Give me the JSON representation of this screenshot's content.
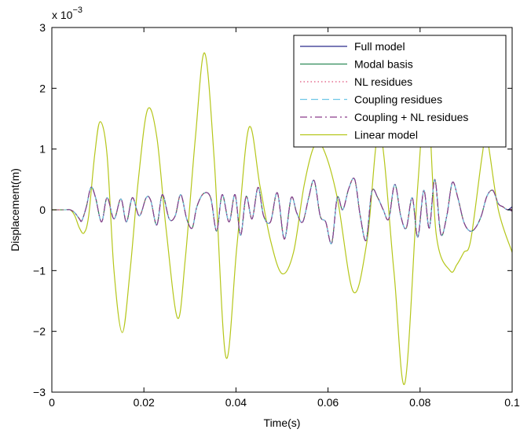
{
  "chart_data": {
    "type": "line",
    "xlabel": "Time(s)",
    "ylabel": "Displacement(m)",
    "y_multiplier_label": "x 10",
    "y_multiplier_exponent": "−3",
    "xlim": [
      0,
      0.1
    ],
    "ylim": [
      -3,
      3
    ],
    "x_ticks": [
      0,
      0.02,
      0.04,
      0.06,
      0.08,
      0.1
    ],
    "x_tick_labels": [
      "0",
      "0.02",
      "0.04",
      "0.06",
      "0.08",
      "0.1"
    ],
    "y_ticks": [
      -3,
      -2,
      -1,
      0,
      1,
      2,
      3
    ],
    "y_tick_labels": [
      "−3",
      "−2",
      "−1",
      "0",
      "1",
      "2",
      "3"
    ],
    "grid": false,
    "legend_position": "top-right",
    "series": [
      {
        "name": "Full model",
        "color": "#2b2b8c",
        "dash": "solid",
        "x": [
          0,
          0.003,
          0.004,
          0.005,
          0.006,
          0.0065,
          0.0075,
          0.0085,
          0.0095,
          0.0108,
          0.012,
          0.0135,
          0.015,
          0.0162,
          0.0175,
          0.019,
          0.0205,
          0.0215,
          0.0228,
          0.024,
          0.0255,
          0.0268,
          0.028,
          0.0293,
          0.0305,
          0.0315,
          0.033,
          0.0345,
          0.0358,
          0.037,
          0.0385,
          0.0398,
          0.041,
          0.0422,
          0.0435,
          0.0448,
          0.046,
          0.0475,
          0.049,
          0.0505,
          0.052,
          0.0532,
          0.0545,
          0.0558,
          0.057,
          0.0583,
          0.0595,
          0.0608,
          0.062,
          0.0632,
          0.0645,
          0.0658,
          0.067,
          0.0683,
          0.0695,
          0.0708,
          0.072,
          0.0732,
          0.0745,
          0.0758,
          0.077,
          0.0783,
          0.0795,
          0.0808,
          0.082,
          0.0832,
          0.0845,
          0.0858,
          0.087,
          0.0882,
          0.0895,
          0.0908,
          0.092,
          0.0933,
          0.0945,
          0.0958,
          0.097,
          0.098,
          0.099,
          0.1
        ],
        "y": [
          0,
          0,
          0,
          -0.05,
          -0.15,
          -0.18,
          0.05,
          0.37,
          0.2,
          -0.2,
          0.2,
          -0.15,
          0.18,
          -0.2,
          0.2,
          -0.1,
          0.2,
          0.15,
          -0.25,
          0.25,
          -0.15,
          -0.1,
          0.25,
          -0.15,
          -0.3,
          0.05,
          0.27,
          0.2,
          -0.35,
          0.25,
          -0.2,
          0.25,
          -0.42,
          0.22,
          -0.15,
          0.37,
          -0.1,
          -0.2,
          0.28,
          -0.48,
          0.2,
          -0.05,
          -0.2,
          0.2,
          0.48,
          -0.1,
          -0.2,
          -0.55,
          0.2,
          0.0,
          0.35,
          0.5,
          -0.1,
          -0.5,
          0.3,
          0.2,
          0.0,
          -0.15,
          0.42,
          -0.1,
          -0.3,
          0.2,
          -0.45,
          0.32,
          -0.3,
          0.5,
          -0.4,
          -0.1,
          0.45,
          0.2,
          -0.2,
          -0.35,
          -0.3,
          -0.1,
          0.22,
          0.32,
          0.1,
          0.05,
          0.0,
          0.05
        ]
      },
      {
        "name": "Modal basis",
        "color": "#2e8b57",
        "dash": "solid",
        "x": [
          0,
          0.003,
          0.004,
          0.005,
          0.006,
          0.0065,
          0.0075,
          0.0085,
          0.0095,
          0.0108,
          0.012,
          0.0135,
          0.015,
          0.0162,
          0.0175,
          0.019,
          0.0205,
          0.0215,
          0.0228,
          0.024,
          0.0255,
          0.0268,
          0.028,
          0.0293,
          0.0305,
          0.0315,
          0.033,
          0.0345,
          0.0358,
          0.037,
          0.0385,
          0.0398,
          0.041,
          0.0422,
          0.0435,
          0.0448,
          0.046,
          0.0475,
          0.049,
          0.0505,
          0.052,
          0.0532,
          0.0545,
          0.0558,
          0.057,
          0.0583,
          0.0595,
          0.0608,
          0.062,
          0.0632,
          0.0645,
          0.0658,
          0.067,
          0.0683,
          0.0695,
          0.0708,
          0.072,
          0.0732,
          0.0745,
          0.0758,
          0.077,
          0.0783,
          0.0795,
          0.0808,
          0.082,
          0.0832,
          0.0845,
          0.0858,
          0.087,
          0.0882,
          0.0895,
          0.0908,
          0.092,
          0.0933,
          0.0945,
          0.0958,
          0.097,
          0.098,
          0.099,
          0.1
        ],
        "y": [
          0,
          0,
          0,
          -0.05,
          -0.15,
          -0.18,
          0.05,
          0.37,
          0.2,
          -0.2,
          0.2,
          -0.15,
          0.18,
          -0.2,
          0.2,
          -0.1,
          0.2,
          0.15,
          -0.25,
          0.25,
          -0.15,
          -0.1,
          0.25,
          -0.15,
          -0.3,
          0.05,
          0.27,
          0.2,
          -0.35,
          0.25,
          -0.2,
          0.25,
          -0.42,
          0.22,
          -0.15,
          0.37,
          -0.1,
          -0.2,
          0.28,
          -0.48,
          0.2,
          -0.05,
          -0.2,
          0.2,
          0.48,
          -0.1,
          -0.2,
          -0.55,
          0.2,
          0.0,
          0.35,
          0.5,
          -0.1,
          -0.5,
          0.3,
          0.2,
          0.0,
          -0.15,
          0.42,
          -0.1,
          -0.3,
          0.2,
          -0.45,
          0.32,
          -0.3,
          0.5,
          -0.4,
          -0.1,
          0.45,
          0.2,
          -0.2,
          -0.35,
          -0.3,
          -0.1,
          0.22,
          0.32,
          0.1,
          0.05,
          0.0,
          0.0
        ]
      },
      {
        "name": "NL residues",
        "color": "#e0507a",
        "dash": "dotted",
        "x": [
          0,
          0.003,
          0.004,
          0.005,
          0.006,
          0.0065,
          0.0075,
          0.0085,
          0.0095,
          0.0108,
          0.012,
          0.0135,
          0.015,
          0.0162,
          0.0175,
          0.019,
          0.0205,
          0.0215,
          0.0228,
          0.024,
          0.0255,
          0.0268,
          0.028,
          0.0293,
          0.0305,
          0.0315,
          0.033,
          0.0345,
          0.0358,
          0.037,
          0.0385,
          0.0398,
          0.041,
          0.0422,
          0.0435,
          0.0448,
          0.046,
          0.0475,
          0.049,
          0.0505,
          0.052,
          0.0532,
          0.0545,
          0.0558,
          0.057,
          0.0583,
          0.0595,
          0.0608,
          0.062,
          0.0632,
          0.0645,
          0.0658,
          0.067,
          0.0683,
          0.0695,
          0.0708,
          0.072,
          0.0732,
          0.0745,
          0.0758,
          0.077,
          0.0783,
          0.0795,
          0.0808,
          0.082,
          0.0832,
          0.0845,
          0.0858,
          0.087,
          0.0882,
          0.0895,
          0.0908,
          0.092,
          0.0933,
          0.0945,
          0.0958,
          0.097,
          0.098,
          0.099,
          0.1
        ],
        "y": [
          0,
          0,
          0,
          -0.05,
          -0.15,
          -0.18,
          0.05,
          0.37,
          0.2,
          -0.2,
          0.2,
          -0.15,
          0.18,
          -0.2,
          0.2,
          -0.1,
          0.2,
          0.15,
          -0.25,
          0.25,
          -0.15,
          -0.1,
          0.25,
          -0.15,
          -0.3,
          0.05,
          0.27,
          0.2,
          -0.35,
          0.25,
          -0.2,
          0.25,
          -0.42,
          0.22,
          -0.15,
          0.37,
          -0.1,
          -0.2,
          0.28,
          -0.48,
          0.2,
          -0.05,
          -0.2,
          0.2,
          0.48,
          -0.1,
          -0.2,
          -0.55,
          0.2,
          0.0,
          0.35,
          0.5,
          -0.1,
          -0.5,
          0.3,
          0.2,
          0.0,
          -0.15,
          0.42,
          -0.1,
          -0.3,
          0.2,
          -0.45,
          0.32,
          -0.3,
          0.5,
          -0.4,
          -0.1,
          0.45,
          0.2,
          -0.2,
          -0.35,
          -0.3,
          -0.1,
          0.22,
          0.32,
          0.1,
          0.05,
          0.0,
          0.02
        ]
      },
      {
        "name": "Coupling residues",
        "color": "#6ec6e6",
        "dash": "dashed",
        "x": [
          0,
          0.003,
          0.004,
          0.005,
          0.006,
          0.0065,
          0.0075,
          0.0085,
          0.0095,
          0.0108,
          0.012,
          0.0135,
          0.015,
          0.0162,
          0.0175,
          0.019,
          0.0205,
          0.0215,
          0.0228,
          0.024,
          0.0255,
          0.0268,
          0.028,
          0.0293,
          0.0305,
          0.0315,
          0.033,
          0.0345,
          0.0358,
          0.037,
          0.0385,
          0.0398,
          0.041,
          0.0422,
          0.0435,
          0.0448,
          0.046,
          0.0475,
          0.049,
          0.0505,
          0.052,
          0.0532,
          0.0545,
          0.0558,
          0.057,
          0.0583,
          0.0595,
          0.0608,
          0.062,
          0.0632,
          0.0645,
          0.0658,
          0.067,
          0.0683,
          0.0695,
          0.0708,
          0.072,
          0.0732,
          0.0745,
          0.0758,
          0.077,
          0.0783,
          0.0795,
          0.0808,
          0.082,
          0.0832,
          0.0845,
          0.0858,
          0.087,
          0.0882,
          0.0895,
          0.0908,
          0.092,
          0.0933,
          0.0945,
          0.0958,
          0.097,
          0.098,
          0.099,
          0.1
        ],
        "y": [
          0,
          0,
          0,
          -0.05,
          -0.15,
          -0.18,
          0.05,
          0.37,
          0.2,
          -0.2,
          0.2,
          -0.15,
          0.18,
          -0.2,
          0.2,
          -0.1,
          0.2,
          0.15,
          -0.25,
          0.25,
          -0.15,
          -0.1,
          0.25,
          -0.15,
          -0.3,
          0.05,
          0.27,
          0.2,
          -0.35,
          0.25,
          -0.2,
          0.25,
          -0.42,
          0.22,
          -0.15,
          0.37,
          -0.1,
          -0.2,
          0.28,
          -0.48,
          0.2,
          -0.05,
          -0.2,
          0.2,
          0.48,
          -0.1,
          -0.2,
          -0.55,
          0.2,
          0.0,
          0.35,
          0.5,
          -0.1,
          -0.5,
          0.3,
          0.2,
          0.0,
          -0.15,
          0.42,
          -0.1,
          -0.3,
          0.2,
          -0.45,
          0.32,
          -0.3,
          0.5,
          -0.4,
          -0.1,
          0.45,
          0.2,
          -0.2,
          -0.35,
          -0.3,
          -0.1,
          0.22,
          0.32,
          0.1,
          0.05,
          0.0,
          0.0
        ]
      },
      {
        "name": "Coupling + NL residues",
        "color": "#8b3a8b",
        "dash": "dashdot",
        "x": [
          0,
          0.003,
          0.004,
          0.005,
          0.006,
          0.0065,
          0.0075,
          0.0085,
          0.0095,
          0.0108,
          0.012,
          0.0135,
          0.015,
          0.0162,
          0.0175,
          0.019,
          0.0205,
          0.0215,
          0.0228,
          0.024,
          0.0255,
          0.0268,
          0.028,
          0.0293,
          0.0305,
          0.0315,
          0.033,
          0.0345,
          0.0358,
          0.037,
          0.0385,
          0.0398,
          0.041,
          0.0422,
          0.0435,
          0.0448,
          0.046,
          0.0475,
          0.049,
          0.0505,
          0.052,
          0.0532,
          0.0545,
          0.0558,
          0.057,
          0.0583,
          0.0595,
          0.0608,
          0.062,
          0.0632,
          0.0645,
          0.0658,
          0.067,
          0.0683,
          0.0695,
          0.0708,
          0.072,
          0.0732,
          0.0745,
          0.0758,
          0.077,
          0.0783,
          0.0795,
          0.0808,
          0.082,
          0.0832,
          0.0845,
          0.0858,
          0.087,
          0.0882,
          0.0895,
          0.0908,
          0.092,
          0.0933,
          0.0945,
          0.0958,
          0.097,
          0.098,
          0.099,
          0.1
        ],
        "y": [
          0,
          0,
          0,
          -0.05,
          -0.15,
          -0.18,
          0.05,
          0.37,
          0.2,
          -0.2,
          0.2,
          -0.15,
          0.18,
          -0.2,
          0.2,
          -0.1,
          0.2,
          0.15,
          -0.25,
          0.25,
          -0.15,
          -0.1,
          0.25,
          -0.15,
          -0.3,
          0.05,
          0.27,
          0.2,
          -0.35,
          0.25,
          -0.2,
          0.25,
          -0.42,
          0.22,
          -0.15,
          0.37,
          -0.1,
          -0.2,
          0.28,
          -0.48,
          0.2,
          -0.05,
          -0.2,
          0.2,
          0.48,
          -0.1,
          -0.2,
          -0.55,
          0.2,
          0.0,
          0.35,
          0.5,
          -0.1,
          -0.5,
          0.3,
          0.2,
          0.0,
          -0.15,
          0.42,
          -0.1,
          -0.3,
          0.2,
          -0.45,
          0.32,
          -0.3,
          0.5,
          -0.4,
          -0.1,
          0.45,
          0.2,
          -0.2,
          -0.35,
          -0.3,
          -0.1,
          0.22,
          0.32,
          0.1,
          0.05,
          0.0,
          -0.02
        ]
      },
      {
        "name": "Linear model",
        "color": "#b5c61a",
        "dash": "solid",
        "x": [
          0,
          0.003,
          0.004,
          0.005,
          0.006,
          0.007,
          0.008,
          0.0093,
          0.0105,
          0.012,
          0.0135,
          0.0153,
          0.017,
          0.0188,
          0.0208,
          0.0228,
          0.0248,
          0.0273,
          0.029,
          0.0312,
          0.0332,
          0.0353,
          0.0378,
          0.0402,
          0.0428,
          0.0452,
          0.0475,
          0.05,
          0.0525,
          0.0548,
          0.057,
          0.059,
          0.062,
          0.0655,
          0.0685,
          0.0712,
          0.0743,
          0.0767,
          0.0795,
          0.0815,
          0.0835,
          0.0865,
          0.088,
          0.0895,
          0.091,
          0.0935,
          0.0945,
          0.097,
          0.1
        ],
        "y": [
          0,
          0,
          0,
          -0.1,
          -0.3,
          -0.38,
          -0.1,
          0.9,
          1.45,
          0.9,
          -1.0,
          -2.02,
          -1.0,
          0.5,
          1.65,
          1.2,
          -0.3,
          -1.78,
          -0.8,
          1.2,
          2.58,
          0.8,
          -2.42,
          -0.6,
          1.35,
          0.4,
          -0.5,
          -1.05,
          -0.7,
          0.4,
          1.05,
          1.0,
          0.2,
          -1.35,
          -0.5,
          1.3,
          -1.0,
          -2.85,
          0.4,
          2.0,
          -0.4,
          -1.0,
          -0.9,
          -0.7,
          -0.5,
          0.9,
          1.2,
          0.0,
          -0.7
        ]
      }
    ]
  }
}
